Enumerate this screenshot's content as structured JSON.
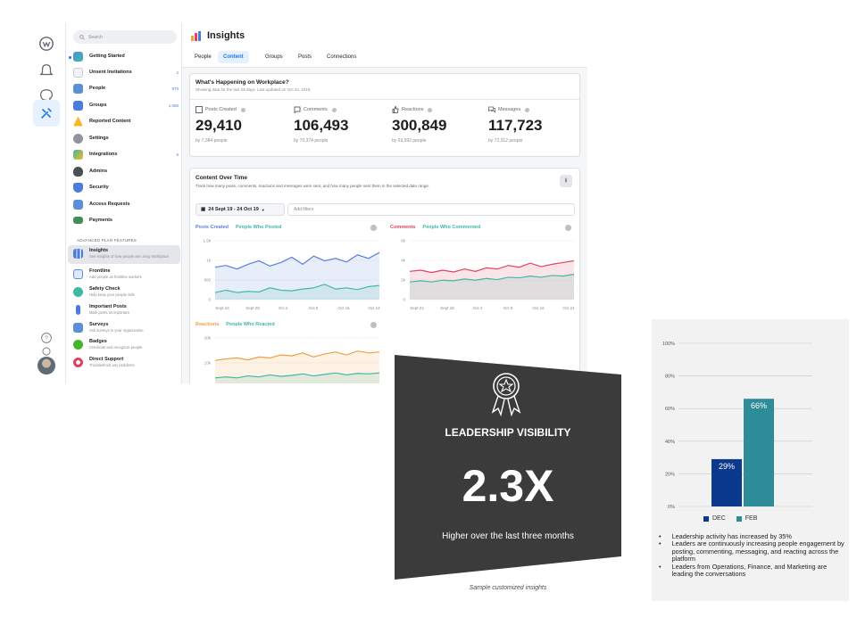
{
  "workplace": {
    "search": {
      "placeholder": "Search"
    },
    "sidebar": {
      "items": [
        {
          "label": "Getting Started",
          "count": ""
        },
        {
          "label": "Unsent Invitations",
          "count": "2"
        },
        {
          "label": "People",
          "count": "975"
        },
        {
          "label": "Groups",
          "count": "1,056"
        },
        {
          "label": "Reported Content",
          "count": ""
        },
        {
          "label": "Settings",
          "count": ""
        },
        {
          "label": "Integrations",
          "count": "5"
        },
        {
          "label": "Admins",
          "count": ""
        },
        {
          "label": "Security",
          "count": ""
        },
        {
          "label": "Access Requests",
          "count": ""
        },
        {
          "label": "Payments",
          "count": ""
        }
      ],
      "advanced_header": "ADVANCED PLAN FEATURES",
      "advanced_items": [
        {
          "label": "Insights",
          "sub": "See insights of how people are using Workplace"
        },
        {
          "label": "Frontline",
          "sub": "Add people as frontline workers"
        },
        {
          "label": "Safety Check",
          "sub": "Help keep your people safe"
        },
        {
          "label": "Important Posts",
          "sub": "Mark posts as important"
        },
        {
          "label": "Surveys",
          "sub": "Ask surveys to your organization"
        },
        {
          "label": "Badges",
          "sub": "Celebrate and recognize people"
        },
        {
          "label": "Direct Support",
          "sub": "Troubleshoot any problems"
        }
      ]
    },
    "header": {
      "title": "Insights",
      "tabs": [
        "People",
        "Content",
        "Groups",
        "Posts",
        "Connections"
      ]
    },
    "summary": {
      "title": "What's Happening on Workplace?",
      "subtitle": "Showing data for the last 28 days. Last updated on Oct 24, 2019.",
      "metrics": [
        {
          "label": "Posts Created",
          "value": "29,410",
          "sub": "by 7,384 people"
        },
        {
          "label": "Comments",
          "value": "106,493",
          "sub": "by 70,374 people"
        },
        {
          "label": "Reactions",
          "value": "300,849",
          "sub": "by 69,592 people"
        },
        {
          "label": "Messages",
          "value": "117,723",
          "sub": "by 72,312 people"
        }
      ]
    },
    "content_over_time": {
      "title": "Content Over Time",
      "subtitle": "Track how many posts, comments, reactions and messages were sent, and how many people sent them in the selected date range.",
      "date_range": "24 Sept 19 - 24 Oct 19",
      "filters_placeholder": "Add filters",
      "charts": [
        {
          "label_a": "Posts Created",
          "label_b": "People Who Posted",
          "color_a": "#5b7fdb",
          "color_b": "#3fb8a5",
          "yticks": [
            "1.5k",
            "1k",
            "500",
            "0"
          ],
          "xticks": [
            "Sept 24",
            "Sept 28",
            "Oct 2",
            "Oct 8",
            "Oct 16",
            "Oct 24"
          ]
        },
        {
          "label_a": "Comments",
          "label_b": "People Who Commented",
          "color_a": "#e0415e",
          "color_b": "#3fb8a5",
          "yticks": [
            "6k",
            "4k",
            "2k",
            "0"
          ],
          "xticks": [
            "Sept 24",
            "Sept 28",
            "Oct 2",
            "Oct 8",
            "Oct 16",
            "Oct 24"
          ]
        },
        {
          "label_a": "Reactions",
          "label_b": "People Who Reacted",
          "color_a": "#f0a040",
          "color_b": "#3fb8a5",
          "yticks": [
            "20k",
            "15k",
            "10k"
          ],
          "xticks": []
        }
      ]
    }
  },
  "leadership": {
    "title": "LEADERSHIP VISIBILITY",
    "multiplier": "2.3X",
    "subtitle": "Higher over the last three months",
    "caption": "Sample customized insights",
    "bg_color": "#3b3b3b"
  },
  "bar_panel": {
    "bullets": [
      "Leadership activity has increased by 35%",
      "Leaders are continuously increasing people engagement by posting, commenting, messaging, and reacting across the platform",
      "Leaders from Operations, Finance, and Marketing are leading the conversations"
    ]
  },
  "chart_data": {
    "type": "bar",
    "categories": [
      "DEC",
      "FEB"
    ],
    "values": [
      29,
      66
    ],
    "data_labels": [
      "29%",
      "66%"
    ],
    "colors": [
      "#0b3a8c",
      "#2e8c99"
    ],
    "yticks": [
      "0%",
      "20%",
      "40%",
      "60%",
      "80%",
      "100%"
    ],
    "ylim": [
      0,
      100
    ],
    "legend": [
      "DEC",
      "FEB"
    ],
    "legend_position": "bottom",
    "grid": true
  }
}
